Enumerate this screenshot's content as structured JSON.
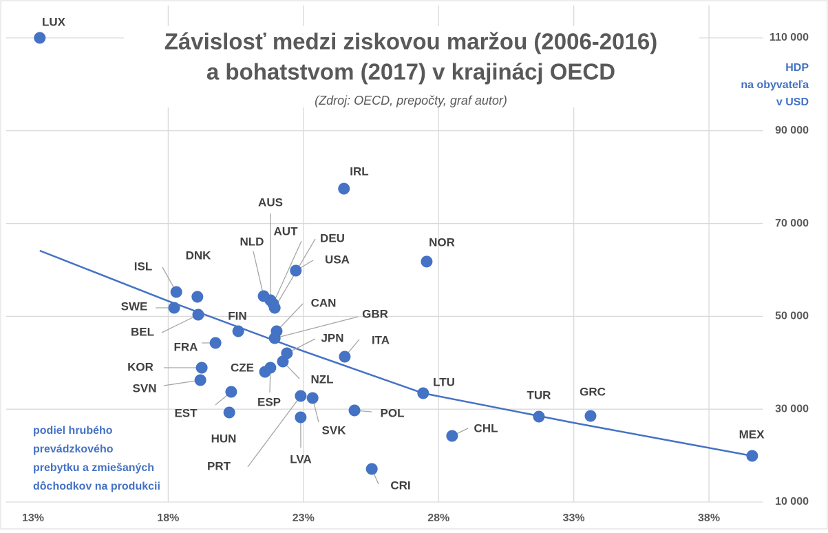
{
  "chart_data": {
    "type": "scatter",
    "title": [
      "Závislosť medzi ziskovou maržou (2006-2016)",
      "a bohatstvom (2017) v krajinácj OECD"
    ],
    "subtitle": "(Zdroj: OECD, prepočty, graf autor)",
    "y_label": [
      "HDP",
      "na obyvateľa",
      "v USD"
    ],
    "x_label": [
      "podiel hrubého",
      "prevádzkového",
      "prebytku a zmiešaných",
      "dôchodkov na produkcii"
    ],
    "color": "#4472c4",
    "labels": [
      "LUX",
      "IRL",
      "NOR",
      "USA",
      "AUS",
      "NLD",
      "AUT",
      "DEU",
      "ISL",
      "DNK",
      "SWE",
      "BEL",
      "FIN",
      "CAN",
      "GBR",
      "FRA",
      "JPN",
      "ITA",
      "NZL",
      "CZE",
      "KOR",
      "ESP",
      "SVN",
      "LTU",
      "EST",
      "PRT",
      "SVK",
      "TUR",
      "GRC",
      "POL",
      "HUN",
      "LVA",
      "CHL",
      "MEX",
      "CRI"
    ],
    "x": [
      13.25,
      24.5,
      27.56,
      22.72,
      21.78,
      21.53,
      21.88,
      21.94,
      18.3,
      19.08,
      18.22,
      19.11,
      20.59,
      22.01,
      21.94,
      19.75,
      22.39,
      24.53,
      22.24,
      21.58,
      19.24,
      21.78,
      19.19,
      27.43,
      20.33,
      22.9,
      23.34,
      31.71,
      33.62,
      24.89,
      20.26,
      22.9,
      28.5,
      39.6,
      25.53
    ],
    "values": [
      110000,
      77500,
      61800,
      59850,
      53470,
      54360,
      52730,
      51840,
      55250,
      54210,
      51840,
      50350,
      46800,
      46800,
      45300,
      44270,
      42050,
      41300,
      40270,
      38040,
      38930,
      38930,
      36260,
      33440,
      33740,
      32850,
      32400,
      28400,
      28550,
      29730,
      29290,
      28250,
      24240,
      19940,
      17120
    ],
    "trendline": {
      "x": [
        13.25,
        18,
        23,
        27.43,
        33,
        39.6
      ],
      "values": [
        64150,
        53300,
        42500,
        33440,
        27060,
        19940
      ]
    },
    "xlim": [
      12,
      40
    ],
    "xticks": [
      {
        "value": 13,
        "label": "13%"
      },
      {
        "value": 18,
        "label": "18%"
      },
      {
        "value": 23,
        "label": "23%"
      },
      {
        "value": 28,
        "label": "28%"
      },
      {
        "value": 33,
        "label": "33%"
      },
      {
        "value": 38,
        "label": "38%"
      }
    ],
    "ylim": [
      10000,
      117000
    ],
    "yticks": [
      {
        "value": 10000,
        "label": "10 000"
      },
      {
        "value": 30000,
        "label": "30 000"
      },
      {
        "value": 50000,
        "label": "50 000"
      },
      {
        "value": 70000,
        "label": "70 000"
      },
      {
        "value": 90000,
        "label": "90 000"
      },
      {
        "value": 110000,
        "label": "110 000"
      }
    ],
    "grid": true
  }
}
